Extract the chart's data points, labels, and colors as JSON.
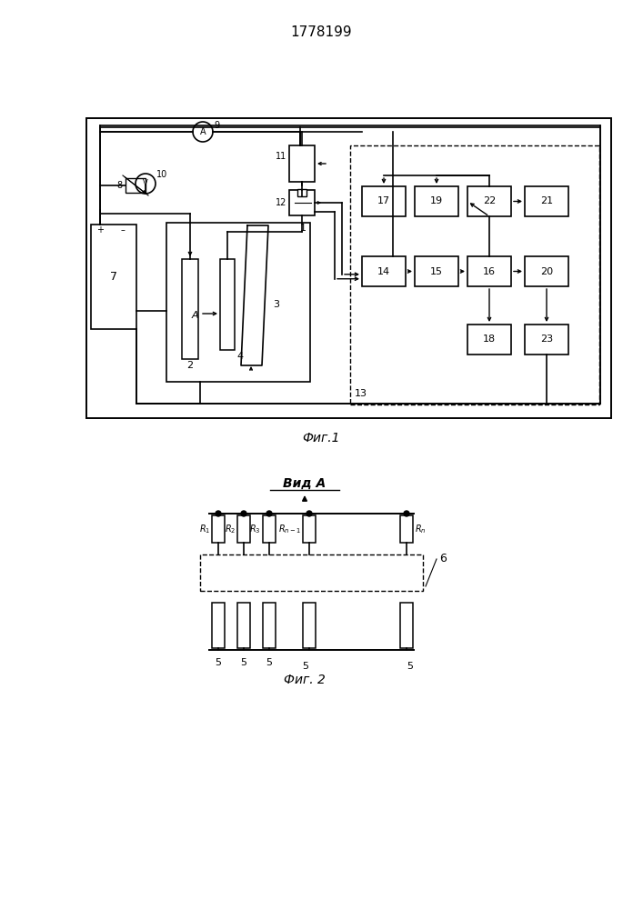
{
  "title": "1778199",
  "fig1_caption": "Фиг.1",
  "fig2_caption": "Фиг. 2",
  "vid_a_label": "Вид А",
  "background_color": "#ffffff",
  "line_color": "#000000"
}
